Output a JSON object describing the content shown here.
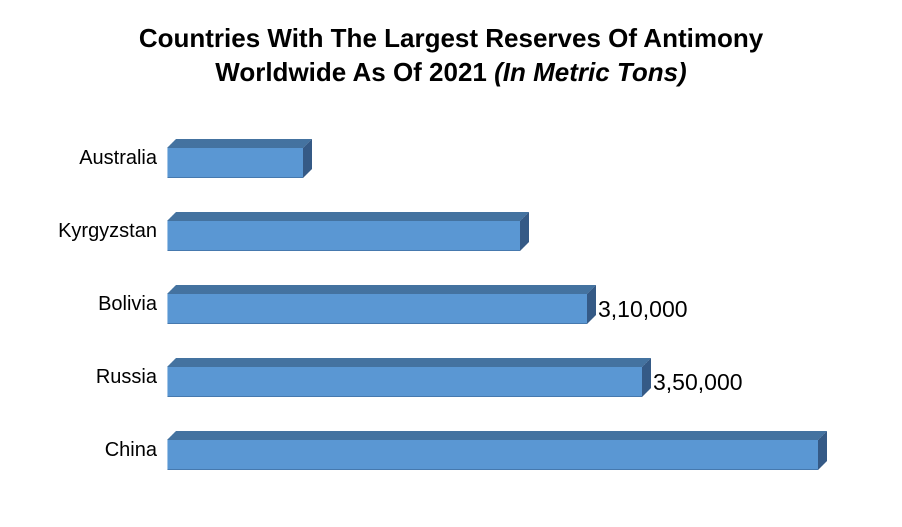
{
  "title": {
    "line1": "Countries With The Largest Reserves Of Antimony",
    "line2_regular": "Worldwide As Of 2021 ",
    "line2_italic": "(In Metric Tons)"
  },
  "chart_data": {
    "type": "bar",
    "orientation": "horizontal",
    "title": "Countries With The Largest Reserves Of Antimony Worldwide As Of 2021 (In Metric Tons)",
    "categories": [
      "Australia",
      "Kyrgyzstan",
      "Bolivia",
      "Russia",
      "China"
    ],
    "values": [
      100000,
      260000,
      310000,
      350000,
      480000
    ],
    "data_labels": [
      "",
      "",
      "3,10,000",
      "3,50,000",
      ""
    ],
    "value_label_format": "indian-digit-grouping",
    "unit": "metric tons",
    "xlim": [
      0,
      480000
    ],
    "grid": false,
    "legend": false,
    "axes_visible": false,
    "bar_style_3d": true,
    "colors": {
      "bar_front": "#5A97D3",
      "bar_top": "#4E81B1",
      "bar_side": "#3A6290",
      "text": "#000000",
      "background": "#FFFFFF"
    }
  }
}
